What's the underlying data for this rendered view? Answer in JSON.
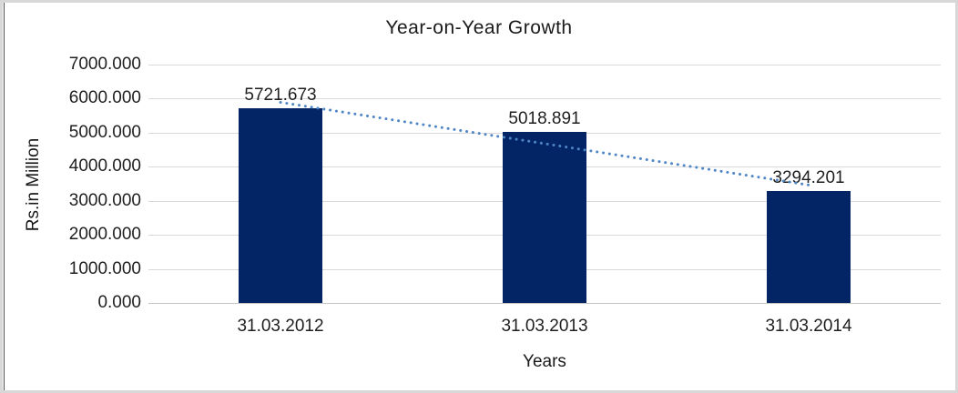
{
  "chart_data": {
    "type": "bar",
    "title": "Year-on-Year Growth",
    "xlabel": "Years",
    "ylabel": "Rs.in Million",
    "categories": [
      "31.03.2012",
      "31.03.2013",
      "31.03.2014"
    ],
    "values": [
      5721.673,
      5018.891,
      3294.201
    ],
    "value_format": "0.000",
    "ylim": [
      0,
      7000
    ],
    "ytick_step": 1000,
    "ytick_format": "0.000",
    "grid": true,
    "legend": "none",
    "trendline": {
      "type": "linear",
      "style": "dotted",
      "color": "#4f86c6"
    },
    "colors": {
      "bar": "#032566",
      "gridline": "#d9d9d9",
      "axis_line": "#c3c3c3",
      "text": "#1f1f1f",
      "title_text": "#1a1a1a",
      "frame_border": "#d8d8d8",
      "frame_left_line": "#4f4f4f",
      "background": "#ffffff"
    }
  }
}
